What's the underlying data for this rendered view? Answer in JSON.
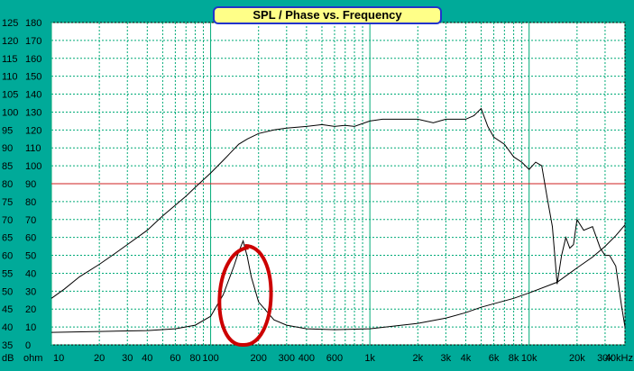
{
  "colors": {
    "background": "#00aa99",
    "plot_bg": "#ffffff",
    "grid": "#00aa77",
    "reference_line": "#cc2222",
    "curve": "#000000",
    "annotation": "#cc0000",
    "title_bg": "#ffff88",
    "title_border": "#2233cc"
  },
  "chart_data": {
    "type": "line",
    "title": "SPL / Phase vs. Frequency",
    "x_scale": "log",
    "xlim": [
      10,
      40000
    ],
    "x_tick_labels": [
      "10",
      "20",
      "30",
      "40",
      "60",
      "80",
      "100",
      "200",
      "300",
      "400",
      "600",
      "1k",
      "2k",
      "3k",
      "4k",
      "6k",
      "8k",
      "10k",
      "20k",
      "30k",
      "40kHz"
    ],
    "x_tick_values": [
      10,
      20,
      30,
      40,
      60,
      80,
      100,
      200,
      300,
      400,
      600,
      1000,
      2000,
      3000,
      4000,
      6000,
      8000,
      10000,
      20000,
      30000,
      40000
    ],
    "left_axis": {
      "unit": "dB",
      "ylim": [
        35,
        125
      ],
      "tick_labels": [
        "125",
        "120",
        "115",
        "110",
        "105",
        "100",
        "95",
        "90",
        "85",
        "80",
        "75",
        "70",
        "65",
        "60",
        "55",
        "50",
        "45",
        "40",
        "35"
      ]
    },
    "right_axis": {
      "unit": "ohm",
      "ylim": [
        0,
        180
      ],
      "tick_labels": [
        "180",
        "170",
        "160",
        "150",
        "140",
        "130",
        "120",
        "110",
        "100",
        "90",
        "80",
        "70",
        "60",
        "50",
        "40",
        "30",
        "20",
        "10",
        "0"
      ]
    },
    "grid": true,
    "reference_line": {
      "value_db": 80
    },
    "series": [
      {
        "axis": "left",
        "x": [
          10,
          12,
          15,
          20,
          25,
          30,
          40,
          50,
          60,
          70,
          80,
          100,
          120,
          150,
          170,
          200,
          250,
          300,
          400,
          500,
          600,
          700,
          800,
          1000,
          1200,
          1500,
          2000,
          2500,
          3000,
          3500,
          4000,
          4500,
          5000,
          5500,
          6000,
          7000,
          8000,
          9000,
          10000,
          11000,
          12000,
          13000,
          14000,
          15000,
          16000,
          17000,
          18000,
          19000,
          20000,
          22000,
          25000,
          28000,
          30000,
          32000,
          35000,
          38000,
          40000
        ],
        "y": [
          48,
          50.5,
          54,
          57.5,
          60.5,
          63,
          67,
          71,
          74,
          76.5,
          79,
          83,
          86.5,
          91,
          92.5,
          94,
          95,
          95.5,
          96,
          96.5,
          96,
          96.3,
          96,
          97.5,
          98,
          98,
          98,
          97,
          98,
          98,
          98,
          99,
          101,
          96,
          93,
          91,
          87.5,
          86,
          84,
          86,
          85,
          76,
          68,
          52,
          60,
          65,
          62,
          63,
          70,
          67,
          68,
          62,
          60,
          60,
          57,
          46,
          40
        ]
      },
      {
        "axis": "right",
        "x": [
          10,
          20,
          40,
          60,
          80,
          100,
          120,
          140,
          150,
          160,
          170,
          180,
          200,
          250,
          300,
          400,
          600,
          1000,
          2000,
          3000,
          4000,
          5000,
          6000,
          8000,
          10000,
          15000,
          20000,
          25000,
          30000,
          35000,
          40000
        ],
        "y": [
          7,
          7.5,
          8,
          9,
          11,
          16,
          28,
          44,
          52,
          58,
          49,
          38,
          24,
          14,
          11,
          9,
          8.5,
          9,
          12,
          15,
          18,
          21,
          23,
          26,
          29,
          35,
          43,
          49,
          55,
          61,
          67
        ]
      }
    ],
    "annotations": [
      {
        "shape": "ellipse",
        "note": "red circle around impedance peak",
        "center_hz": 160
      }
    ]
  }
}
